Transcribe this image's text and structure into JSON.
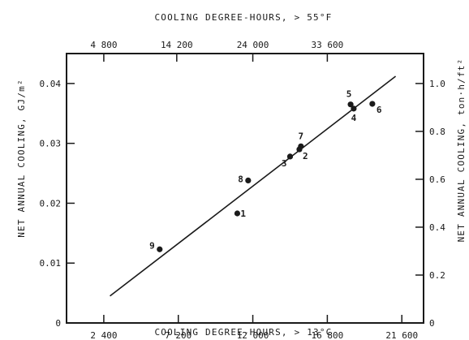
{
  "chart_data": {
    "type": "scatter",
    "xlabel_bottom": "COOLING DEGREE-HOURS, > 13°C",
    "xlabel_top": "COOLING DEGREE-HOURS, > 55°F",
    "ylabel_left": "NET ANNUAL COOLING, GJ/m²",
    "ylabel_right": "NET ANNUAL COOLING, ton·h/ft²",
    "xlim": [
      0,
      23000
    ],
    "ylim": [
      0,
      0.045
    ],
    "x_ticks_bottom": [
      2400,
      7200,
      12000,
      16800,
      21600
    ],
    "x_tick_labels_bottom": [
      "2 400",
      "7 200",
      "12 000",
      "16 800",
      "21 600"
    ],
    "x_ticks_top": [
      4800,
      14200,
      24000,
      33600
    ],
    "x_tick_labels_top": [
      "4 800",
      "14 200",
      "24 000",
      "33 600"
    ],
    "y_ticks_left": [
      0,
      0.01,
      0.02,
      0.03,
      0.04
    ],
    "y_tick_labels_left": [
      "0",
      "0.01",
      "0.02",
      "0.03",
      "0.04"
    ],
    "y_ticks_right": [
      0,
      0.2,
      0.4,
      0.6,
      0.8,
      1.0
    ],
    "y_tick_labels_right": [
      "0",
      "0.2",
      "0.4",
      "0.6",
      "0.8",
      "1.0"
    ],
    "points": [
      {
        "label": "1",
        "x": 11000,
        "y": 0.0183
      },
      {
        "label": "2",
        "x": 15000,
        "y": 0.029
      },
      {
        "label": "3",
        "x": 14400,
        "y": 0.0278
      },
      {
        "label": "4",
        "x": 18500,
        "y": 0.0358
      },
      {
        "label": "5",
        "x": 18300,
        "y": 0.0365
      },
      {
        "label": "6",
        "x": 19700,
        "y": 0.0366
      },
      {
        "label": "7",
        "x": 15100,
        "y": 0.0295
      },
      {
        "label": "8",
        "x": 11700,
        "y": 0.0238
      },
      {
        "label": "9",
        "x": 6000,
        "y": 0.0123
      }
    ],
    "fit_line": {
      "x": [
        2800,
        21200
      ],
      "y": [
        0.0045,
        0.0412
      ]
    },
    "grid": false,
    "legend": "none"
  }
}
